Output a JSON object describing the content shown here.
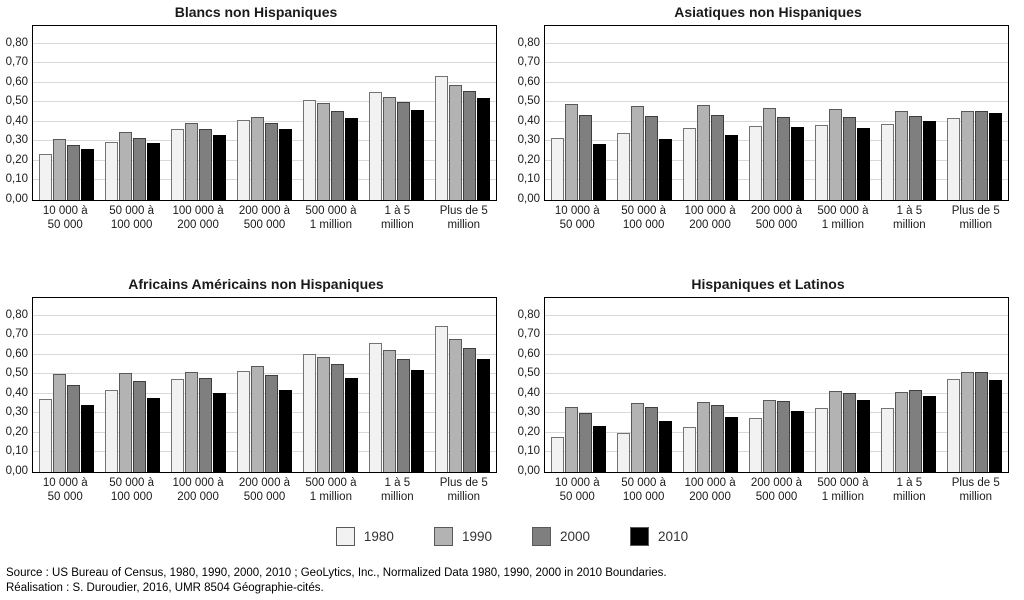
{
  "figure": {
    "y_ticks": [
      "0,00",
      "0,10",
      "0,20",
      "0,30",
      "0,40",
      "0,50",
      "0,60",
      "0,70",
      "0,80"
    ],
    "categories": [
      [
        "10 000 à",
        "50 000"
      ],
      [
        "50 000 à",
        "100 000"
      ],
      [
        "100 000 à",
        "200 000"
      ],
      [
        "200 000 à",
        "500 000"
      ],
      [
        "500 000 à",
        "1 million"
      ],
      [
        "1 à 5",
        "million"
      ],
      [
        "Plus de 5",
        "million"
      ]
    ],
    "legend": [
      {
        "label": "1980",
        "fill": "#f2f2f2",
        "border": "#737373"
      },
      {
        "label": "1990",
        "fill": "#b3b3b3",
        "border": "#595959"
      },
      {
        "label": "2000",
        "fill": "#7f7f7f",
        "border": "#3f3f3f"
      },
      {
        "label": "2010",
        "fill": "#000000",
        "border": "#000000"
      }
    ],
    "grid_color": "#d9d9d9",
    "source_line1": "Source : US Bureau of Census, 1980, 1990, 2000, 2010 ; GeoLytics, Inc., Normalized Data 1980, 1990, 2000 in 2010 Boundaries.",
    "source_line2": "Réalisation : S. Duroudier, 2016, UMR 8504 Géographie-cités."
  },
  "chart_data": [
    {
      "type": "bar",
      "title": "Blancs non Hispaniques",
      "categories": [
        "10 000 à 50 000",
        "50 000 à 100 000",
        "100 000 à 200 000",
        "200 000 à 500 000",
        "500 000 à 1 million",
        "1 à 5 million",
        "Plus de 5 million"
      ],
      "ylim": [
        0,
        0.89
      ],
      "ytick_step": 0.1,
      "series": [
        {
          "name": "1980",
          "values": [
            0.235,
            0.295,
            0.365,
            0.41,
            0.51,
            0.55,
            0.635
          ]
        },
        {
          "name": "1990",
          "values": [
            0.31,
            0.35,
            0.395,
            0.425,
            0.495,
            0.525,
            0.59
          ]
        },
        {
          "name": "2000",
          "values": [
            0.28,
            0.315,
            0.365,
            0.395,
            0.455,
            0.5,
            0.56
          ]
        },
        {
          "name": "2010",
          "values": [
            0.26,
            0.29,
            0.335,
            0.365,
            0.42,
            0.46,
            0.52
          ]
        }
      ]
    },
    {
      "type": "bar",
      "title": "Asiatiques non Hispaniques",
      "categories": [
        "10 000 à 50 000",
        "50 000 à 100 000",
        "100 000 à 200 000",
        "200 000 à 500 000",
        "500 000 à 1 million",
        "1 à 5 million",
        "Plus de 5 million"
      ],
      "ylim": [
        0,
        0.89
      ],
      "ytick_step": 0.1,
      "series": [
        {
          "name": "1980",
          "values": [
            0.315,
            0.345,
            0.37,
            0.38,
            0.385,
            0.39,
            0.42
          ]
        },
        {
          "name": "1990",
          "values": [
            0.49,
            0.48,
            0.485,
            0.47,
            0.465,
            0.455,
            0.455
          ]
        },
        {
          "name": "2000",
          "values": [
            0.435,
            0.43,
            0.435,
            0.425,
            0.425,
            0.43,
            0.455
          ]
        },
        {
          "name": "2010",
          "values": [
            0.285,
            0.31,
            0.335,
            0.375,
            0.37,
            0.405,
            0.445
          ]
        }
      ]
    },
    {
      "type": "bar",
      "title": "Africains Américains non Hispaniques",
      "categories": [
        "10 000 à 50 000",
        "50 000 à 100 000",
        "100 000 à 200 000",
        "200 000 à 500 000",
        "500 000 à 1 million",
        "1 à 5 million",
        "Plus de 5 million"
      ],
      "ylim": [
        0,
        0.89
      ],
      "ytick_step": 0.1,
      "series": [
        {
          "name": "1980",
          "values": [
            0.375,
            0.42,
            0.475,
            0.515,
            0.605,
            0.66,
            0.745
          ]
        },
        {
          "name": "1990",
          "values": [
            0.5,
            0.505,
            0.51,
            0.54,
            0.59,
            0.625,
            0.68
          ]
        },
        {
          "name": "2000",
          "values": [
            0.445,
            0.465,
            0.48,
            0.495,
            0.55,
            0.58,
            0.635
          ]
        },
        {
          "name": "2010",
          "values": [
            0.345,
            0.38,
            0.405,
            0.42,
            0.48,
            0.52,
            0.58
          ]
        }
      ]
    },
    {
      "type": "bar",
      "title": "Hispaniques et Latinos",
      "categories": [
        "10 000 à 50 000",
        "50 000 à 100 000",
        "100 000 à 200 000",
        "200 000 à 500 000",
        "500 000 à 1 million",
        "1 à 5 million",
        "Plus de 5 million"
      ],
      "ylim": [
        0,
        0.89
      ],
      "ytick_step": 0.1,
      "series": [
        {
          "name": "1980",
          "values": [
            0.18,
            0.2,
            0.23,
            0.275,
            0.325,
            0.325,
            0.475
          ]
        },
        {
          "name": "1990",
          "values": [
            0.335,
            0.355,
            0.36,
            0.37,
            0.415,
            0.41,
            0.51
          ]
        },
        {
          "name": "2000",
          "values": [
            0.3,
            0.33,
            0.345,
            0.365,
            0.405,
            0.42,
            0.51
          ]
        },
        {
          "name": "2010",
          "values": [
            0.235,
            0.26,
            0.28,
            0.31,
            0.37,
            0.39,
            0.47
          ]
        }
      ]
    }
  ]
}
